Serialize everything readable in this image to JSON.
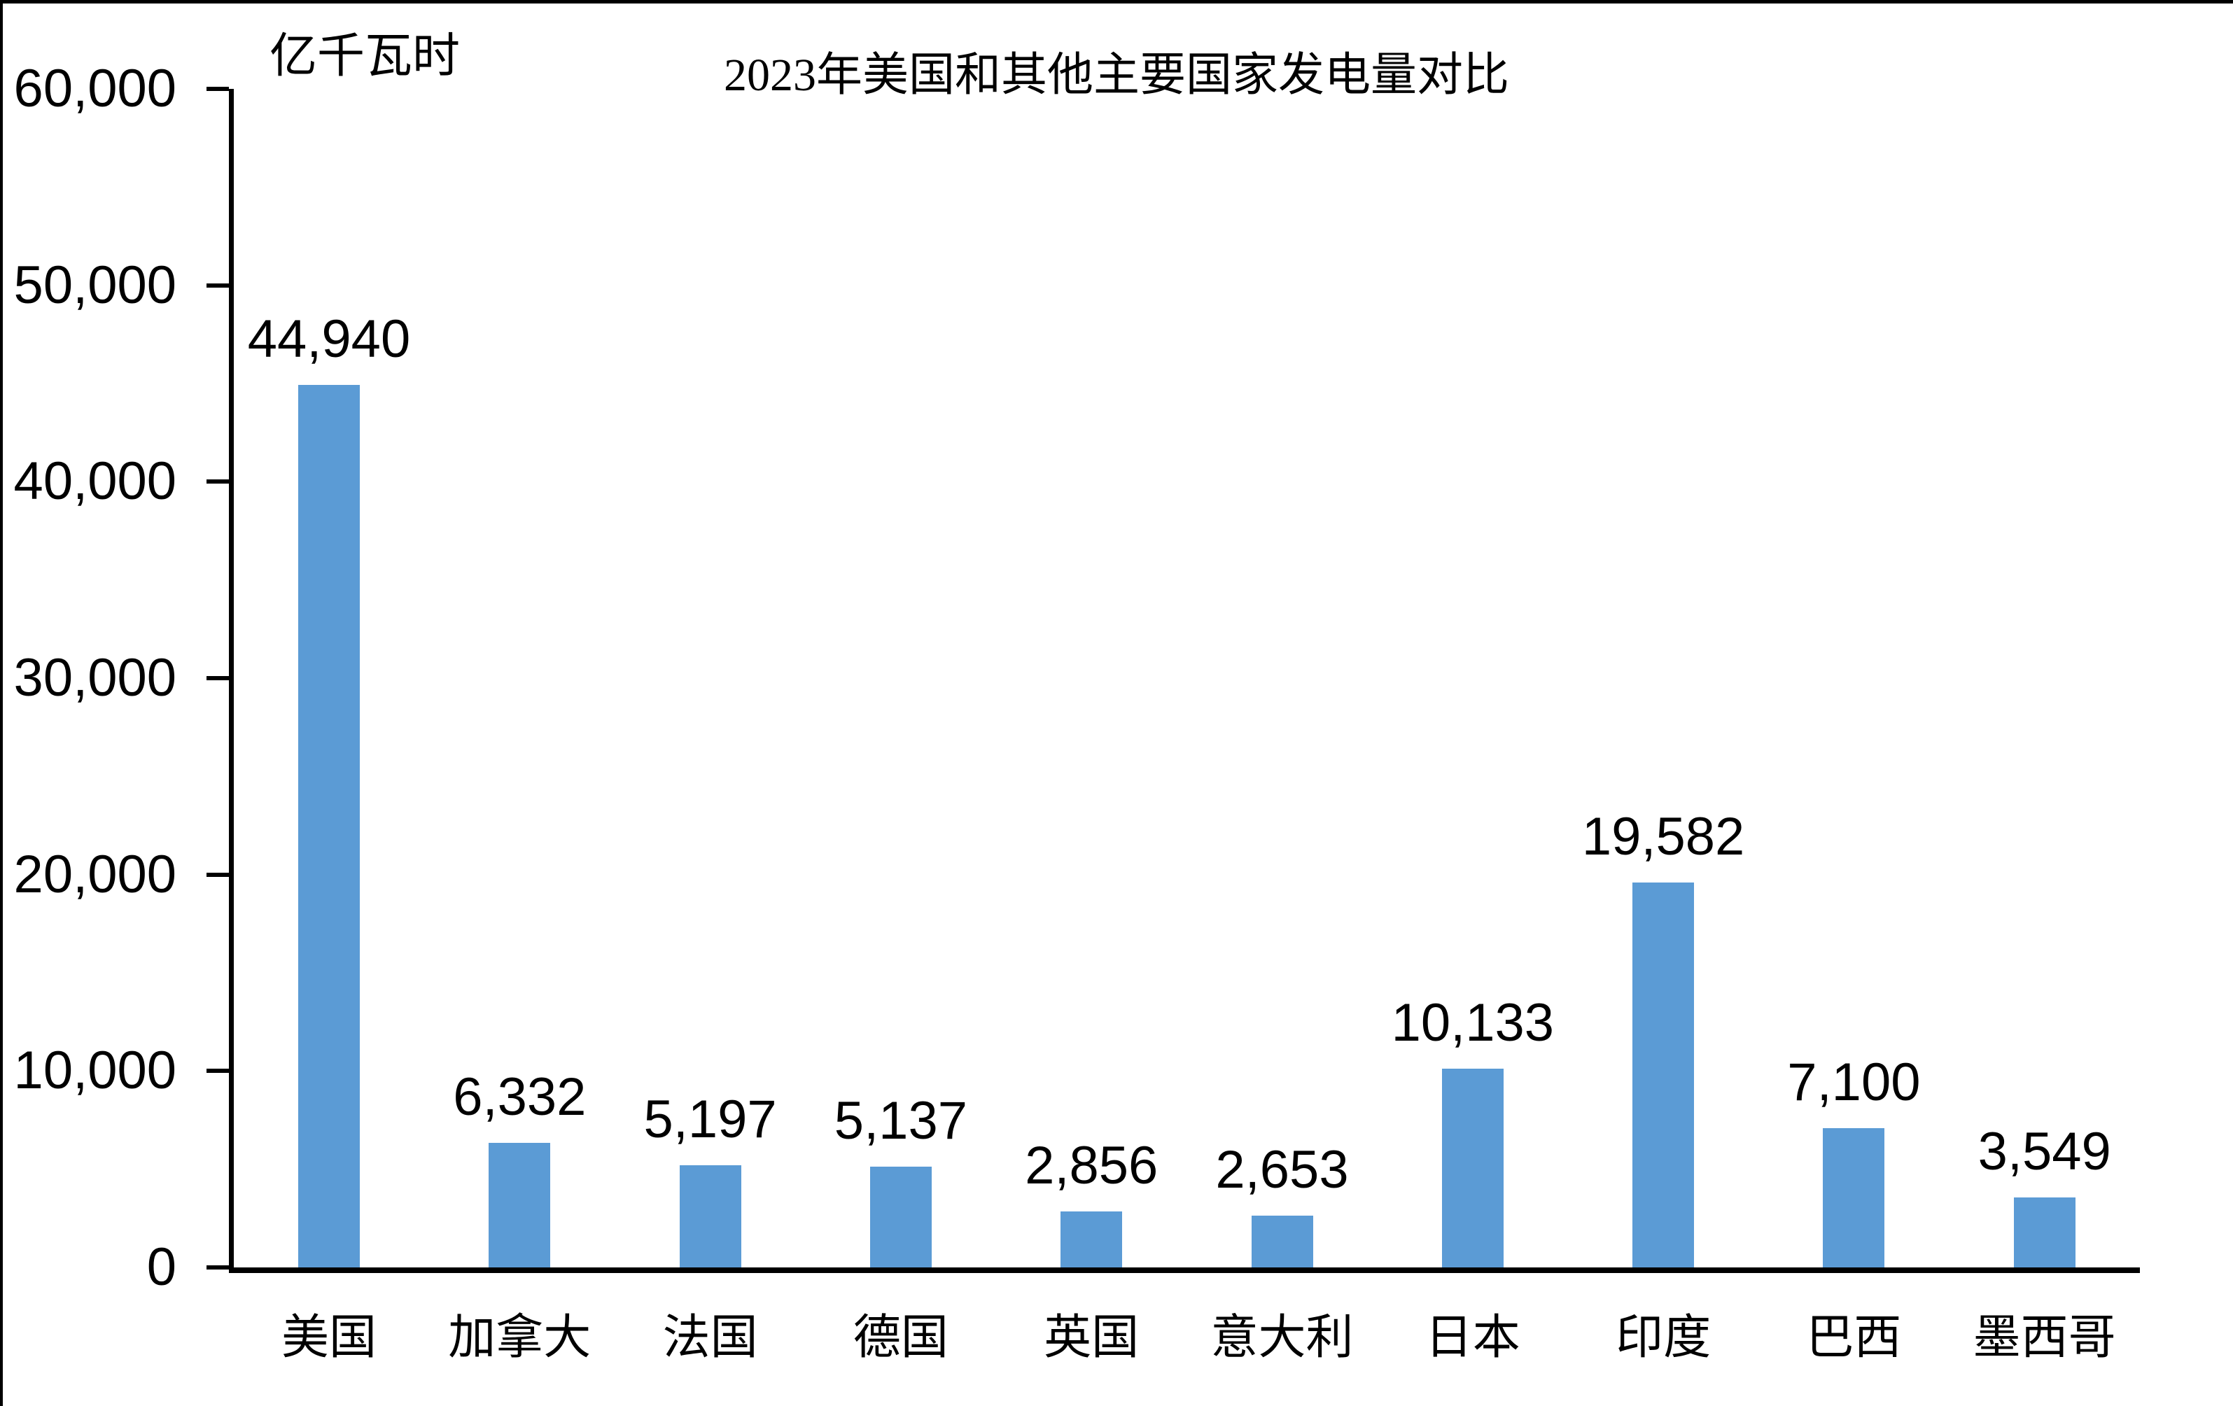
{
  "page": {
    "background": "#ffffff",
    "border_color": "#000000"
  },
  "chart_data": {
    "type": "bar",
    "title": "2023年美国和其他主要国家发电量对比",
    "unit_label": "亿千瓦时",
    "categories": [
      "美国",
      "加拿大",
      "法国",
      "德国",
      "英国",
      "意大利",
      "日本",
      "印度",
      "巴西",
      "墨西哥"
    ],
    "values": [
      44940,
      6332,
      5197,
      5137,
      2856,
      2653,
      10133,
      19582,
      7100,
      3549
    ],
    "value_labels": [
      "44,940",
      "6,332",
      "5,197",
      "5,137",
      "2,856",
      "2,653",
      "10,133",
      "19,582",
      "7,100",
      "3,549"
    ],
    "ylabel": "",
    "xlabel": "",
    "ylim": [
      0,
      60000
    ],
    "yticks": [
      0,
      10000,
      20000,
      30000,
      40000,
      50000,
      60000
    ],
    "ytick_labels": [
      "0",
      "10,000",
      "20,000",
      "30,000",
      "40,000",
      "50,000",
      "60,000"
    ],
    "grid": false,
    "legend_position": "none",
    "bar_color": "#5B9BD5",
    "axis_color": "#000000",
    "text_color": "#000000"
  }
}
